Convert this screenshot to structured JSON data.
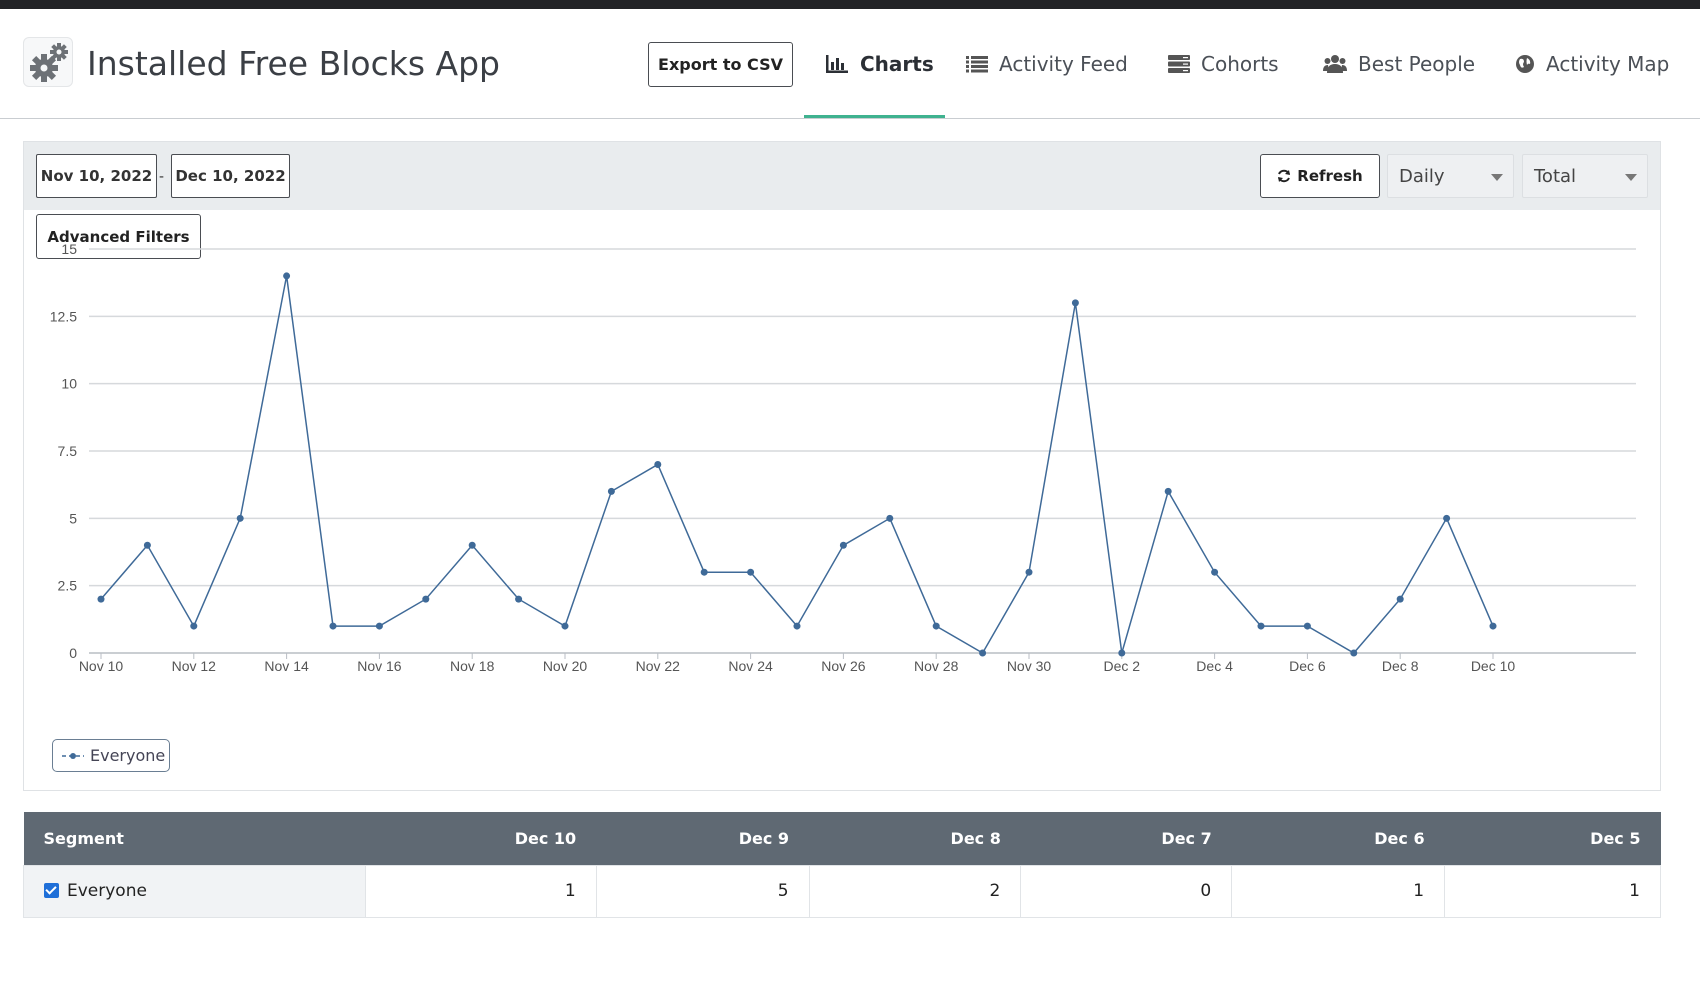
{
  "header": {
    "title": "Installed Free Blocks App",
    "export_label": "Export to CSV",
    "nav": [
      {
        "label": "Charts",
        "icon": "bar-chart-icon",
        "active": true
      },
      {
        "label": "Activity Feed",
        "icon": "list-icon"
      },
      {
        "label": "Cohorts",
        "icon": "server-icon"
      },
      {
        "label": "Best People",
        "icon": "users-icon"
      },
      {
        "label": "Activity Map",
        "icon": "globe-icon"
      }
    ]
  },
  "toolbar": {
    "start_date": "Nov 10, 2022",
    "date_separator": "-",
    "end_date": "Dec 10, 2022",
    "refresh_label": "Refresh",
    "interval": "Daily",
    "metric": "Total",
    "advanced_filters_label": "Advanced Filters"
  },
  "chart_data": {
    "type": "line",
    "title": "",
    "xlabel": "",
    "ylabel": "",
    "x": [
      "Nov 10",
      "Nov 11",
      "Nov 12",
      "Nov 13",
      "Nov 14",
      "Nov 15",
      "Nov 16",
      "Nov 17",
      "Nov 18",
      "Nov 19",
      "Nov 20",
      "Nov 21",
      "Nov 22",
      "Nov 23",
      "Nov 24",
      "Nov 25",
      "Nov 26",
      "Nov 27",
      "Nov 28",
      "Nov 29",
      "Nov 30",
      "Dec 1",
      "Dec 2",
      "Dec 3",
      "Dec 4",
      "Dec 5",
      "Dec 6",
      "Dec 7",
      "Dec 8",
      "Dec 9",
      "Dec 10"
    ],
    "x_tick_labels": [
      "Nov 10",
      "Nov 12",
      "Nov 14",
      "Nov 16",
      "Nov 18",
      "Nov 20",
      "Nov 22",
      "Nov 24",
      "Nov 26",
      "Nov 28",
      "Nov 30",
      "Dec 2",
      "Dec 4",
      "Dec 6",
      "Dec 8",
      "Dec 10"
    ],
    "y_tick_labels": [
      "0",
      "2.5",
      "5",
      "7.5",
      "10",
      "12.5",
      "15"
    ],
    "ylim": [
      0,
      15
    ],
    "grid": true,
    "legend_position": "bottom-left",
    "series": [
      {
        "name": "Everyone",
        "color": "#3f6a98",
        "values": [
          2,
          4,
          1,
          5,
          14,
          1,
          1,
          2,
          4,
          2,
          1,
          6,
          7,
          3,
          3,
          1,
          4,
          5,
          1,
          0,
          3,
          13,
          0,
          6,
          3,
          1,
          1,
          0,
          2,
          5,
          1
        ]
      }
    ]
  },
  "table": {
    "headers": [
      "Segment",
      "Dec 10",
      "Dec 9",
      "Dec 8",
      "Dec 7",
      "Dec 6",
      "Dec 5"
    ],
    "rows": [
      {
        "segment": "Everyone",
        "checked": true,
        "values": [
          "1",
          "5",
          "2",
          "0",
          "1",
          "1"
        ]
      }
    ]
  },
  "colors": {
    "accent": "#3fb28f",
    "series": "#3f6a98",
    "table_header": "#5f6973"
  }
}
